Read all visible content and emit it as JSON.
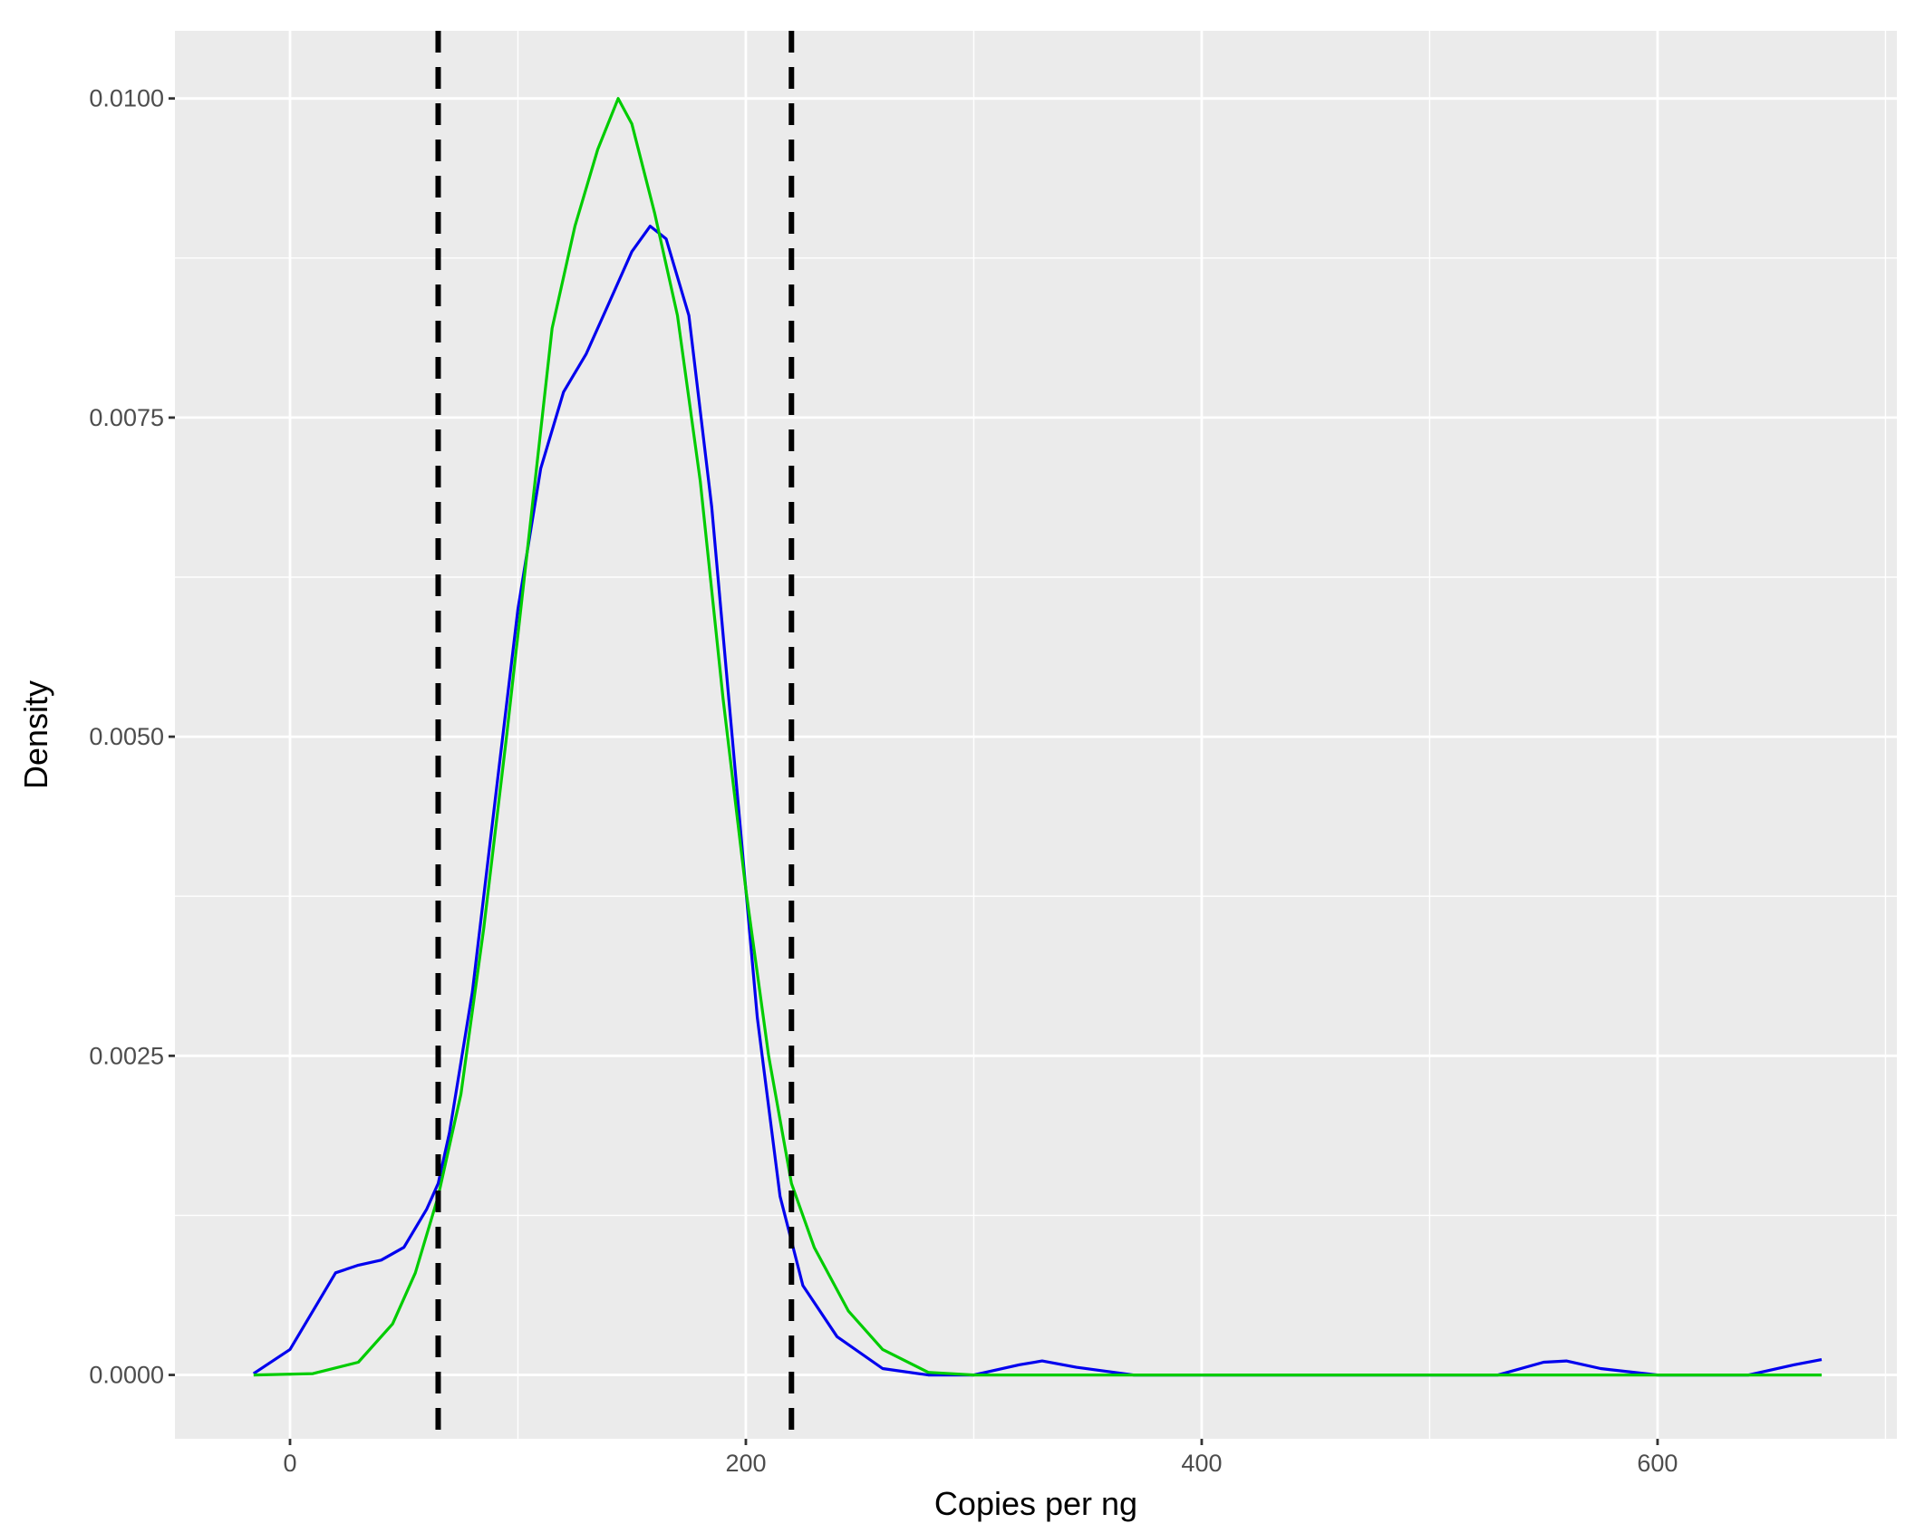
{
  "chart_data": {
    "type": "line",
    "x_label": "Copies per ng",
    "y_label": "Density",
    "xlim": [
      -50.5,
      705
    ],
    "ylim": [
      -0.0005,
      0.01053
    ],
    "xticks": [
      0,
      200,
      400,
      600
    ],
    "xminor_ticks": [
      100,
      300,
      500,
      700
    ],
    "yticks": [
      {
        "value": 0,
        "label": "0.0000"
      },
      {
        "value": 0.0025,
        "label": "0.0025"
      },
      {
        "value": 0.005,
        "label": "0.0050"
      },
      {
        "value": 0.0075,
        "label": "0.0075"
      },
      {
        "value": 0.01,
        "label": "0.0100"
      }
    ],
    "yminor_ticks": [
      0.00125,
      0.00375,
      0.00625,
      0.00875
    ],
    "grid": true,
    "vlines": [
      65,
      220
    ],
    "vline_color": "#000000",
    "series": [
      {
        "color": "#0000ee",
        "x": [
          -16,
          0,
          10,
          20,
          30,
          40,
          50,
          60,
          65,
          70,
          80,
          90,
          100,
          110,
          120,
          130,
          140,
          150,
          158,
          165,
          175,
          185,
          195,
          205,
          215,
          225,
          240,
          260,
          280,
          300,
          320,
          330,
          345,
          370,
          500,
          530,
          550,
          560,
          575,
          600,
          640,
          660,
          672
        ],
        "values": [
          1e-05,
          0.0002,
          0.0005,
          0.0008,
          0.00086,
          0.0009,
          0.001,
          0.0013,
          0.0015,
          0.0019,
          0.003,
          0.0045,
          0.006,
          0.0071,
          0.0077,
          0.008,
          0.0084,
          0.0088,
          0.009,
          0.0089,
          0.0083,
          0.0068,
          0.0048,
          0.0028,
          0.0014,
          0.0007,
          0.0003,
          5e-05,
          0,
          0,
          8e-05,
          0.00011,
          6e-05,
          0,
          0,
          0,
          0.0001,
          0.00011,
          5e-05,
          0,
          0,
          8e-05,
          0.00012
        ]
      },
      {
        "color": "#00cc00",
        "x": [
          -16,
          10,
          30,
          45,
          55,
          65,
          75,
          85,
          95,
          105,
          115,
          125,
          135,
          144,
          150,
          160,
          170,
          180,
          190,
          200,
          210,
          220,
          230,
          245,
          260,
          280,
          300,
          672
        ],
        "values": [
          0,
          1e-05,
          0.0001,
          0.0004,
          0.0008,
          0.0014,
          0.0022,
          0.0035,
          0.005,
          0.0066,
          0.0082,
          0.009,
          0.0096,
          0.01,
          0.0098,
          0.0091,
          0.0083,
          0.007,
          0.0053,
          0.0038,
          0.0025,
          0.0015,
          0.001,
          0.0005,
          0.0002,
          2e-05,
          0,
          0
        ]
      }
    ]
  }
}
